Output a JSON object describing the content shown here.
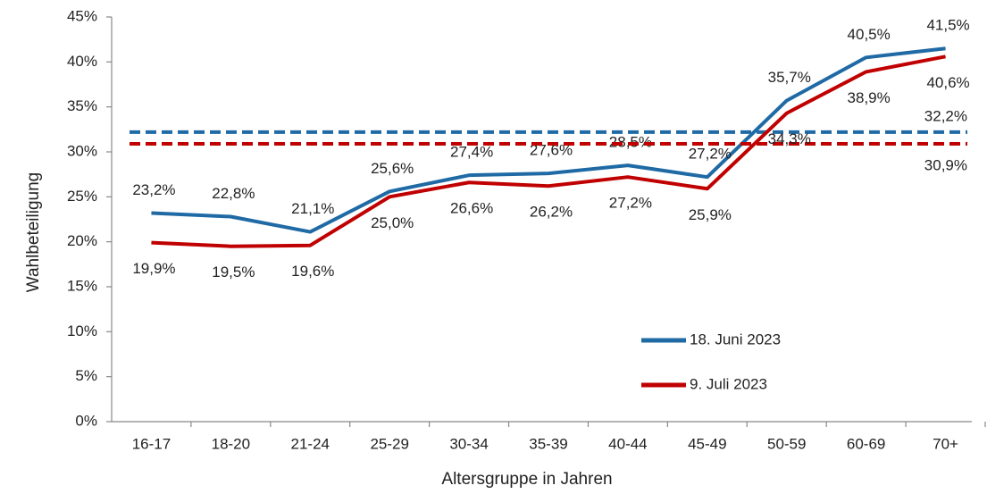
{
  "chart_data": {
    "type": "line",
    "x_label": "Altersgruppe in Jahren",
    "y_label": "Wahlbeteiligung",
    "categories": [
      "16-17",
      "18-20",
      "21-24",
      "25-29",
      "30-34",
      "35-39",
      "40-44",
      "45-49",
      "50-59",
      "60-69",
      "70+"
    ],
    "series": [
      {
        "name": "18. Juni 2023",
        "color": "#1f6aa5",
        "values": [
          23.2,
          22.8,
          21.1,
          25.6,
          27.4,
          27.6,
          28.5,
          27.2,
          35.7,
          40.5,
          41.5
        ],
        "value_labels": [
          "23,2%",
          "22,8%",
          "21,1%",
          "25,6%",
          "27,4%",
          "27,6%",
          "28,5%",
          "27,2%",
          "35,7%",
          "40,5%",
          "41,5%"
        ],
        "average": 32.2,
        "average_label": "32,2%"
      },
      {
        "name": "9. Juli 2023",
        "color": "#c00000",
        "values": [
          19.9,
          19.5,
          19.6,
          25.0,
          26.6,
          26.2,
          27.2,
          25.9,
          34.3,
          38.9,
          40.6
        ],
        "value_labels": [
          "19,9%",
          "19,5%",
          "19,6%",
          "25,0%",
          "26,6%",
          "26,2%",
          "27,2%",
          "25,9%",
          "34,3%",
          "38,9%",
          "40,6%"
        ],
        "average": 30.9,
        "average_label": "30,9%"
      }
    ],
    "ylim": [
      0,
      45
    ],
    "yticks": [
      {
        "value": 0,
        "label": "0%"
      },
      {
        "value": 5,
        "label": "5%"
      },
      {
        "value": 10,
        "label": "10%"
      },
      {
        "value": 15,
        "label": "15%"
      },
      {
        "value": 20,
        "label": "20%"
      },
      {
        "value": 25,
        "label": "25%"
      },
      {
        "value": 30,
        "label": "30%"
      },
      {
        "value": 35,
        "label": "35%"
      },
      {
        "value": 40,
        "label": "40%"
      },
      {
        "value": 45,
        "label": "45%"
      }
    ],
    "grid": false,
    "legend": "lower right"
  }
}
